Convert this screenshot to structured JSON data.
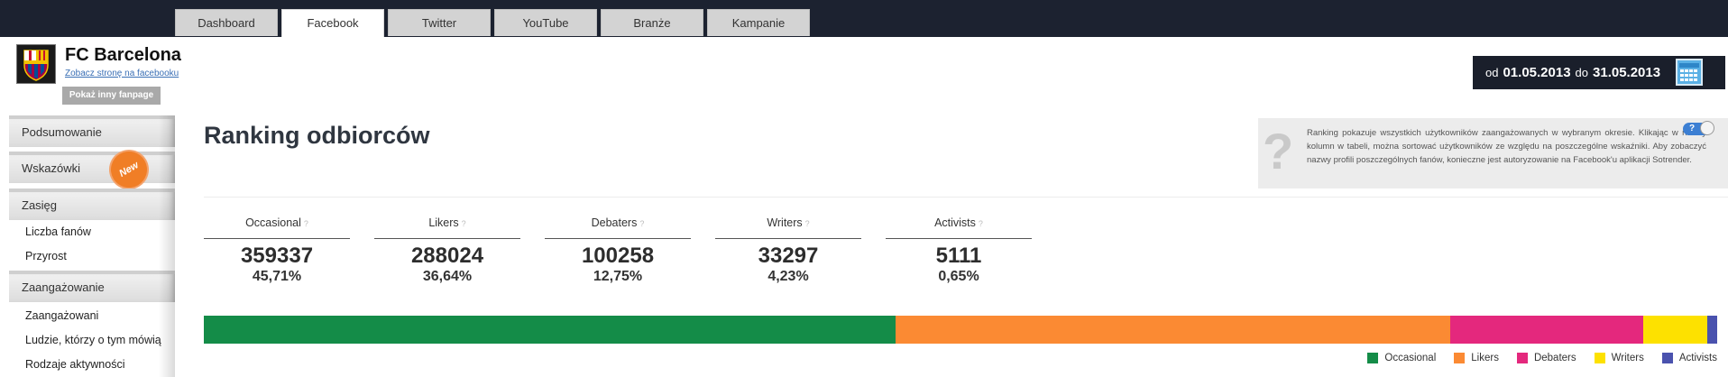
{
  "tabs": [
    {
      "label": "Dashboard",
      "active": false
    },
    {
      "label": "Facebook",
      "active": true
    },
    {
      "label": "Twitter",
      "active": false
    },
    {
      "label": "YouTube",
      "active": false
    },
    {
      "label": "Branże",
      "active": false
    },
    {
      "label": "Kampanie",
      "active": false
    }
  ],
  "page": {
    "name": "FC Barcelona",
    "link": "Zobacz stronę na facebooku",
    "switch_button": "Pokaż inny fanpage"
  },
  "sidebar": {
    "summary": "Podsumowanie",
    "tips": "Wskazówki",
    "new_badge": "New",
    "reach": "Zasięg",
    "fans": "Liczba fanów",
    "growth": "Przyrost",
    "engagement": "Zaangażowanie",
    "engaged": "Zaangażowani",
    "talking": "Ludzie, którzy o tym mówią",
    "activity_types": "Rodzaje aktywności"
  },
  "date_range": {
    "from_label": "od",
    "from": "01.05.2013",
    "to_label": "do",
    "to": "31.05.2013"
  },
  "main": {
    "title": "Ranking odbiorców",
    "help": "Ranking pokazuje wszystkich użytkowników zaangażowanych w wybranym okresie. Klikając w nazwy kolumn w tabeli, można sortować użytkowników ze względu na poszczególne wskaźniki. Aby zobaczyć nazwy profili poszczególnych fanów, konieczne jest autoryzowanie na Facebook'u aplikacji Sotrender.",
    "help_glyph": "?",
    "stats": [
      {
        "label": "Occasional",
        "value": "359337",
        "pct": "45,71%"
      },
      {
        "label": "Likers",
        "value": "288024",
        "pct": "36,64%"
      },
      {
        "label": "Debaters",
        "value": "100258",
        "pct": "12,75%"
      },
      {
        "label": "Writers",
        "value": "33297",
        "pct": "4,23%"
      },
      {
        "label": "Activists",
        "value": "5111",
        "pct": "0,65%"
      }
    ],
    "question_mark": "?"
  },
  "chart_data": {
    "type": "bar",
    "categories": [
      "Occasional",
      "Likers",
      "Debaters",
      "Writers",
      "Activists"
    ],
    "values": [
      45.71,
      36.64,
      12.75,
      4.23,
      0.65
    ],
    "colors": [
      "#148c48",
      "#fb8a33",
      "#e4287d",
      "#fde100",
      "#4a52ae"
    ]
  }
}
